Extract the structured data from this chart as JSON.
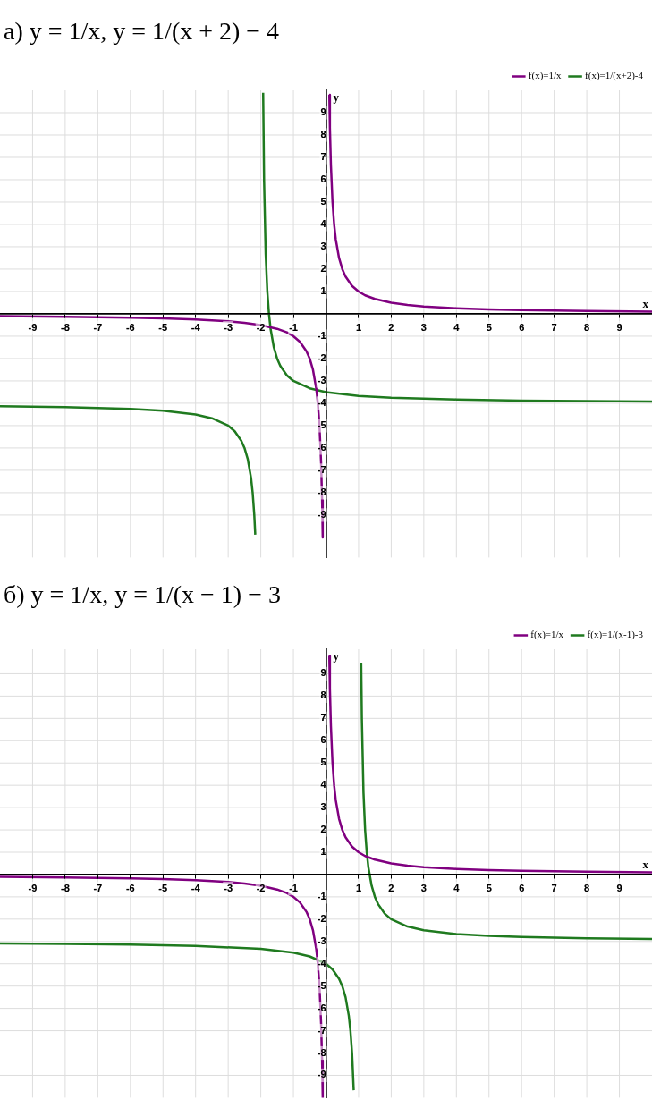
{
  "chart_data": [
    {
      "type": "line",
      "title": "а) y = 1/x,   y = 1/(x + 2) − 4",
      "xlabel": "x",
      "ylabel": "y",
      "xlim": [
        -10,
        10
      ],
      "ylim": [
        -10.9,
        10
      ],
      "xticks": [
        -9,
        -8,
        -7,
        -6,
        -5,
        -4,
        -3,
        -2,
        -1,
        1,
        2,
        3,
        4,
        5,
        6,
        7,
        8,
        9
      ],
      "yticks": [
        -9,
        -8,
        -7,
        -6,
        -5,
        -4,
        -3,
        -2,
        -1,
        1,
        2,
        3,
        4,
        5,
        6,
        7,
        8,
        9
      ],
      "grid": true,
      "legend": "top right",
      "series": [
        {
          "name": "f(x)=1/x",
          "color": "#800080",
          "x": [
            -10,
            -8,
            -6,
            -5,
            -4,
            -3,
            -2.5,
            -2,
            -1.5,
            -1.2,
            -1,
            -0.8,
            -0.6,
            -0.5,
            -0.4,
            -0.3,
            -0.25,
            -0.2,
            -0.15,
            -0.12,
            -0.1,
            0,
            0.102,
            0.12,
            0.15,
            0.2,
            0.25,
            0.3,
            0.4,
            0.5,
            0.6,
            0.8,
            1,
            1.2,
            1.5,
            2,
            2.5,
            3,
            4,
            5,
            6,
            8,
            10
          ],
          "values": [
            -0.1,
            -0.13,
            -0.17,
            -0.2,
            -0.25,
            -0.33,
            -0.4,
            -0.5,
            -0.67,
            -0.83,
            -1,
            -1.25,
            -1.67,
            -2,
            -2.5,
            -3.33,
            -4,
            -5,
            -6.67,
            -8.33,
            -10,
            null,
            9.8,
            8.33,
            6.67,
            5,
            4,
            3.33,
            2.5,
            2,
            1.67,
            1.25,
            1,
            0.83,
            0.67,
            0.5,
            0.4,
            0.33,
            0.25,
            0.2,
            0.17,
            0.13,
            0.1
          ]
        },
        {
          "name": "f(x)=1/(x+2)-4",
          "color": "#1f7a1f",
          "x": [
            -10,
            -8,
            -6,
            -5,
            -4,
            -3.5,
            -3,
            -2.8,
            -2.6,
            -2.5,
            -2.4,
            -2.3,
            -2.25,
            -2.2,
            -2.17,
            -2,
            -1.928,
            -1.9,
            -1.85,
            -1.8,
            -1.75,
            -1.7,
            -1.6,
            -1.5,
            -1.4,
            -1.2,
            -1,
            -0.5,
            0,
            1,
            2,
            4,
            6,
            8,
            10
          ],
          "values": [
            -4.13,
            -4.17,
            -4.25,
            -4.33,
            -4.5,
            -4.67,
            -5,
            -5.25,
            -5.67,
            -6,
            -6.5,
            -7.33,
            -8,
            -9,
            -9.88,
            null,
            9.89,
            6,
            2.67,
            1,
            0,
            -0.67,
            -1.5,
            -2,
            -2.33,
            -2.75,
            -3,
            -3.33,
            -3.5,
            -3.67,
            -3.75,
            -3.83,
            -3.88,
            -3.9,
            -3.92
          ]
        }
      ]
    },
    {
      "type": "line",
      "title": "б) y = 1/x,   y = 1/(x − 1) − 3",
      "xlabel": "x",
      "ylabel": "y",
      "xlim": [
        -10,
        10
      ],
      "ylim": [
        -10,
        10.1
      ],
      "xticks": [
        -9,
        -8,
        -7,
        -6,
        -5,
        -4,
        -3,
        -2,
        -1,
        1,
        2,
        3,
        4,
        5,
        6,
        7,
        8,
        9
      ],
      "yticks": [
        -9,
        -8,
        -7,
        -6,
        -5,
        -4,
        -3,
        -2,
        -1,
        1,
        2,
        3,
        4,
        5,
        6,
        7,
        8,
        9
      ],
      "grid": true,
      "legend": "top right",
      "series": [
        {
          "name": "f(x)=1/x",
          "color": "#800080",
          "x": [
            -10,
            -8,
            -6,
            -5,
            -4,
            -3,
            -2.5,
            -2,
            -1.5,
            -1.2,
            -1,
            -0.8,
            -0.6,
            -0.5,
            -0.4,
            -0.3,
            -0.25,
            -0.2,
            -0.15,
            -0.12,
            -0.1,
            0,
            0.102,
            0.12,
            0.15,
            0.2,
            0.25,
            0.3,
            0.4,
            0.5,
            0.6,
            0.8,
            1,
            1.2,
            1.5,
            2,
            2.5,
            3,
            4,
            5,
            6,
            8,
            10
          ],
          "values": [
            -0.1,
            -0.13,
            -0.17,
            -0.2,
            -0.25,
            -0.33,
            -0.4,
            -0.5,
            -0.67,
            -0.83,
            -1,
            -1.25,
            -1.67,
            -2,
            -2.5,
            -3.33,
            -4,
            -5,
            -6.67,
            -8.33,
            -10,
            null,
            9.8,
            8.33,
            6.67,
            5,
            4,
            3.33,
            2.5,
            2,
            1.67,
            1.25,
            1,
            0.83,
            0.67,
            0.5,
            0.4,
            0.33,
            0.25,
            0.2,
            0.17,
            0.13,
            0.1
          ]
        },
        {
          "name": "f(x)=1/(x-1)-3",
          "color": "#1f7a1f",
          "x": [
            -10,
            -8,
            -6,
            -4,
            -2,
            -1,
            -0.5,
            0,
            0.2,
            0.4,
            0.5,
            0.6,
            0.7,
            0.75,
            0.8,
            0.85,
            1,
            1.08,
            1.1,
            1.15,
            1.2,
            1.25,
            1.3,
            1.4,
            1.5,
            1.6,
            1.8,
            2,
            2.5,
            3,
            4,
            5,
            6,
            8,
            10
          ],
          "values": [
            -3.09,
            -3.11,
            -3.14,
            -3.2,
            -3.33,
            -3.5,
            -3.67,
            -4,
            -4.25,
            -4.67,
            -5,
            -5.5,
            -6.33,
            -7,
            -8,
            -9.67,
            null,
            9.5,
            7,
            3.67,
            2,
            1,
            0.33,
            -0.5,
            -1,
            -1.33,
            -1.75,
            -2,
            -2.33,
            -2.5,
            -2.67,
            -2.75,
            -2.8,
            -2.86,
            -2.89
          ]
        }
      ]
    }
  ]
}
